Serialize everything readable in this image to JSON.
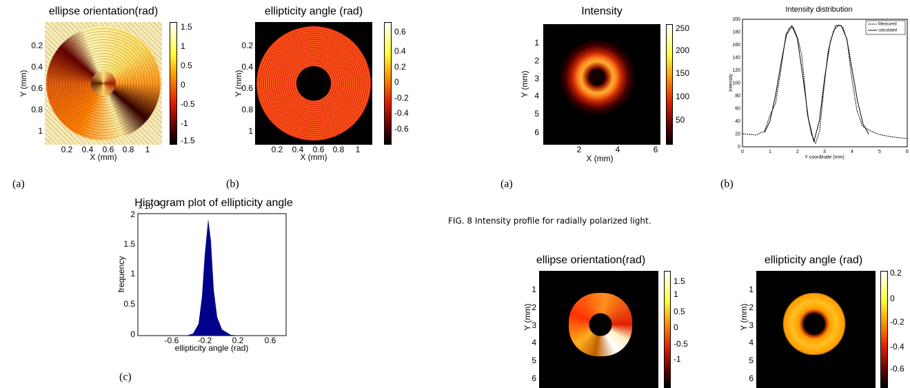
{
  "panels": [
    {
      "title": "ellipse orientation(rad)",
      "xlabel": "X (mm)",
      "ylabel": "Y (mm)",
      "xticks": [
        "0.2",
        "0.4",
        "0.6",
        "0.8",
        "1"
      ],
      "yticks": [
        "0.2",
        "0.4",
        "0.6",
        "0.8",
        "1"
      ],
      "colorbar": [
        "1.5",
        "1",
        "0.5",
        "0",
        "-0.5",
        "-1",
        "-1.5"
      ]
    },
    {
      "title": "ellipticity angle (rad)",
      "xlabel": "X (mm)",
      "ylabel": "Y (mm)",
      "xticks": [
        "0.2",
        "0.4",
        "0.6",
        "0.8",
        "1"
      ],
      "yticks": [
        "0.2",
        "0.4",
        "0.6",
        "0.8",
        "1"
      ],
      "colorbar": [
        "0.6",
        "0.4",
        "0.2",
        "0",
        "-0.2",
        "-0.4",
        "-0.6"
      ]
    },
    {
      "title": "Histogram plot of ellipticity angle",
      "multiplier": "x 10",
      "exponent": "5",
      "xlabel": "ellipticity angle (rad)",
      "ylabel": "frequency",
      "xticks": [
        "-0.6",
        "-0.2",
        "0.2",
        "0.6"
      ],
      "yticks": [
        "2",
        "1.5",
        "1",
        "0.5",
        "0"
      ]
    },
    {
      "title": "Intensity",
      "xlabel": "X (mm)",
      "ylabel": "Y (mm)",
      "xticks": [
        "2",
        "4",
        "6"
      ],
      "yticks": [
        "1",
        "2",
        "3",
        "4",
        "5",
        "6"
      ],
      "colorbar": [
        "250",
        "200",
        "150",
        "100",
        "50"
      ]
    },
    {
      "title": "Intensity distribution",
      "xlabel": "Y coordinate (mm)",
      "ylabel": "Intensity",
      "xticks": [
        "0",
        "1",
        "2",
        "3",
        "4",
        "5",
        "6"
      ],
      "yticks": [
        "200",
        "180",
        "160",
        "140",
        "120",
        "100",
        "80",
        "60",
        "40",
        "20",
        "0"
      ],
      "legend": [
        "Measured",
        "calculated"
      ]
    },
    {
      "title": "ellipse orientation(rad)",
      "ylabel": "Y (mm)",
      "yticks": [
        "1",
        "2",
        "3",
        "4",
        "5",
        "6"
      ],
      "colorbar": [
        "1.5",
        "1",
        "0.5",
        "0",
        "-0.5",
        "-1"
      ]
    },
    {
      "title": "ellipticity angle (rad)",
      "ylabel": "Y (mm)",
      "yticks": [
        "1",
        "2",
        "3",
        "4",
        "5",
        "6"
      ],
      "colorbar": [
        "0.2",
        "0",
        "-0.2",
        "-0.4",
        "-0.6"
      ]
    }
  ],
  "captions": [
    "(a)",
    "(b)",
    "(c)",
    "(a)",
    "(b)"
  ],
  "figure_caption": "FIG. 8 Intensity profile for radially polarized light."
}
